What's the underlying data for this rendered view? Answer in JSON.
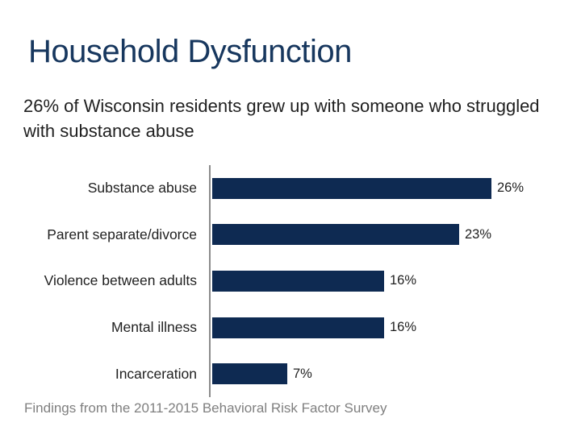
{
  "slide": {
    "title": "Household Dysfunction",
    "subtitle": "26% of Wisconsin residents grew up with someone who struggled\nwith substance abuse"
  },
  "chart_data": {
    "type": "bar",
    "orientation": "horizontal",
    "title": "",
    "xlabel": "",
    "ylabel": "",
    "categories": [
      "Substance abuse",
      "Parent separate/divorce",
      "Violence between adults",
      "Mental illness",
      "Incarceration"
    ],
    "values": [
      26,
      23,
      16,
      16,
      7
    ],
    "value_labels": [
      "26%",
      "23%",
      "16%",
      "16%",
      "7%"
    ],
    "unit": "percent",
    "xlim": [
      0,
      30
    ],
    "grid": false,
    "legend": false,
    "data_labels_position": "outside-end",
    "bar_color": "#0e2a52",
    "axis_line_color": "#8c8c8c",
    "label_color": "#1f1f1f"
  },
  "footer": {
    "text": "Findings from the 2011-2015 Behavioral Risk Factor Survey"
  },
  "colors": {
    "background": "#ffffff",
    "title": "#17375e",
    "body_text": "#1f1f1f",
    "footer_text": "#7f7f7f"
  }
}
